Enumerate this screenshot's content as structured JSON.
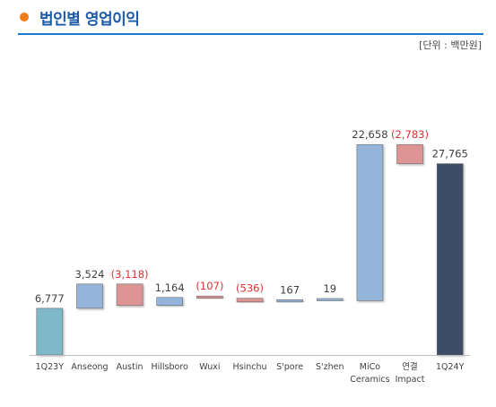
{
  "header": {
    "title": "법인별 영업이익",
    "unit": "[단위 : 백만원]"
  },
  "colors": {
    "accent_dot": "#f07d1b",
    "title": "#1a5aa8",
    "rule": "#1a7ad0",
    "start_bar": "#7fb8c9",
    "increase": "#94b4da",
    "decrease": "#dc9494",
    "end_bar": "#3d4d66",
    "label": "#404040",
    "negative_label": "#e03030"
  },
  "chart_data": {
    "type": "bar",
    "subtype": "waterfall",
    "categories": [
      "1Q23Y",
      "Anseong",
      "Austin",
      "Hillsboro",
      "Wuxi",
      "Hsinchu",
      "S'pore",
      "S'zhen",
      "MiCo\nCeramics",
      "연결\nImpact",
      "1Q24Y"
    ],
    "values": [
      6777,
      3524,
      -3118,
      1164,
      -107,
      -536,
      167,
      19,
      22658,
      -2783,
      27765
    ],
    "value_labels": [
      "6,777",
      "3,524",
      "(3,118)",
      "1,164",
      "(107)",
      "(536)",
      "167",
      "19",
      "22,658",
      "(2,783)",
      "27,765"
    ],
    "bar_kinds": [
      "total",
      "delta",
      "delta",
      "delta",
      "delta",
      "delta",
      "delta",
      "delta",
      "delta",
      "delta",
      "total"
    ],
    "ylim": [
      0,
      32000
    ],
    "grid": false,
    "legend": "none"
  }
}
